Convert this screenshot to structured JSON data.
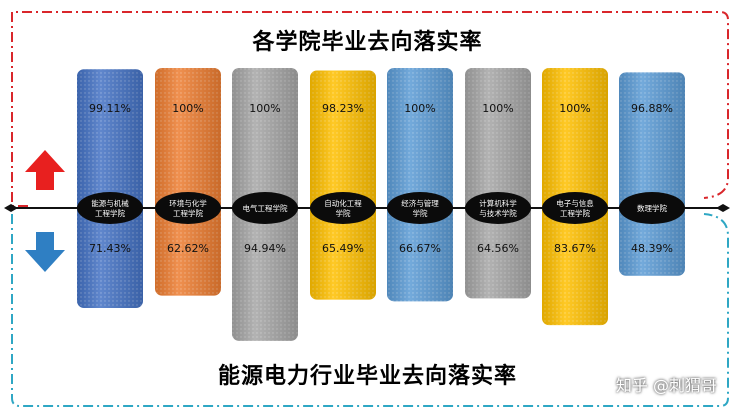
{
  "page": {
    "watermark": "知乎 @刺猬哥"
  },
  "colors": {
    "top_frame": "#d9262b",
    "bottom_frame": "#2fa7c4",
    "up_arrow": "#e8201f",
    "down_arrow": "#2f7fc3",
    "label_ellipse": "#0b0b0b"
  },
  "icons": {
    "up_arrow": "up-arrow-icon",
    "down_arrow": "down-arrow-icon"
  },
  "chart_data": {
    "type": "bar",
    "title": "各学院毕业去向落实率",
    "subtitle": "能源电力行业毕业去向落实率",
    "categories": [
      "能源与机械工程学院",
      "环境与化学工程学院",
      "电气工程学院",
      "自动化工程学院",
      "经济与管理学院",
      "计算机科学与技术学院",
      "电子与信息工程学院",
      "数理学院"
    ],
    "category_lines": [
      [
        "能源与机械",
        "工程学院"
      ],
      [
        "环境与化学",
        "工程学院"
      ],
      [
        "电气工程学院"
      ],
      [
        "自动化工程",
        "学院"
      ],
      [
        "经济与管理",
        "学院"
      ],
      [
        "计算机科学",
        "与技术学院"
      ],
      [
        "电子与信息",
        "工程学院"
      ],
      [
        "数理学院"
      ]
    ],
    "series": [
      {
        "values": [
          99.11,
          100,
          100,
          98.23,
          100,
          100,
          100,
          96.88
        ],
        "labels": [
          "99.11%",
          "100%",
          "100%",
          "98.23%",
          "100%",
          "100%",
          "100%",
          "96.88%"
        ]
      },
      {
        "values": [
          71.43,
          62.62,
          94.94,
          65.49,
          66.67,
          64.56,
          83.67,
          48.39
        ],
        "labels": [
          "71.43%",
          "62.62%",
          "94.94%",
          "65.49%",
          "66.67%",
          "64.56%",
          "83.67%",
          "48.39%"
        ]
      }
    ],
    "bar_colors": [
      "#4472c4",
      "#ed7d31",
      "#a5a5a5",
      "#ffc000",
      "#5b9bd5",
      "#a5a5a5",
      "#ffc000",
      "#5b9bd5"
    ]
  }
}
